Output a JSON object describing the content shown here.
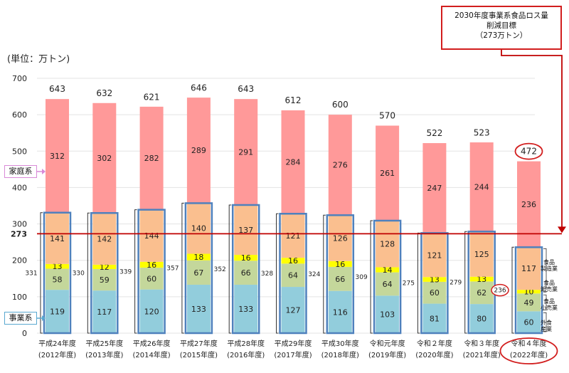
{
  "unit_label": "(単位：万トン)",
  "target_box": {
    "line1": "2030年度事業系食品ロス量",
    "line2": "削減目標",
    "line3": "（273万トン）"
  },
  "legend": {
    "household": "家庭系",
    "business": "事業系"
  },
  "segment_labels": {
    "manufacturing": [
      "食品",
      "製造業"
    ],
    "wholesale": [
      "食品",
      "卸売業"
    ],
    "retail": [
      "食品",
      "小売業"
    ],
    "restaurant": [
      "外食",
      "産業"
    ]
  },
  "chart_data": {
    "type": "bar",
    "stacked": true,
    "ylim": [
      0,
      700
    ],
    "yticks": [
      0,
      100,
      200,
      300,
      400,
      500,
      600,
      700
    ],
    "target_value": 273,
    "target_label": "273",
    "categories": [
      {
        "name": "平成24年度",
        "year": "(2012年度)"
      },
      {
        "name": "平成25年度",
        "year": "(2013年度)"
      },
      {
        "name": "平成26年度",
        "year": "(2014年度)"
      },
      {
        "name": "平成27年度",
        "year": "(2015年度)"
      },
      {
        "name": "平成28年度",
        "year": "(2016年度)"
      },
      {
        "name": "平成29年度",
        "year": "(2017年度)"
      },
      {
        "name": "平成30年度",
        "year": "(2018年度)"
      },
      {
        "name": "令和元年度",
        "year": "(2019年度)"
      },
      {
        "name": "令和２年度",
        "year": "(2020年度)"
      },
      {
        "name": "令和３年度",
        "year": "(2021年度)"
      },
      {
        "name": "令和４年度",
        "year": "(2022年度)"
      }
    ],
    "series": [
      {
        "name": "外食産業",
        "color": "#92cddc",
        "values": [
          119,
          117,
          120,
          133,
          133,
          127,
          116,
          103,
          81,
          80,
          60
        ]
      },
      {
        "name": "食品小売業",
        "color": "#c4d79b",
        "values": [
          58,
          59,
          60,
          67,
          66,
          64,
          66,
          64,
          60,
          62,
          49
        ]
      },
      {
        "name": "食品卸売業",
        "color": "#ffff00",
        "values": [
          13,
          12,
          16,
          18,
          16,
          16,
          16,
          14,
          13,
          13,
          10
        ]
      },
      {
        "name": "食品製造業",
        "color": "#fabf8f",
        "values": [
          141,
          142,
          144,
          140,
          137,
          121,
          126,
          128,
          121,
          125,
          117
        ]
      },
      {
        "name": "家庭系",
        "color": "#ff9999",
        "values": [
          312,
          302,
          282,
          289,
          291,
          284,
          276,
          261,
          247,
          244,
          236
        ]
      }
    ],
    "totals": [
      643,
      632,
      621,
      646,
      643,
      612,
      600,
      570,
      522,
      523,
      472
    ],
    "business_totals": [
      331,
      330,
      339,
      357,
      352,
      328,
      324,
      309,
      275,
      279,
      236
    ],
    "business_color": "#4f81bd",
    "target_color": "#c00000"
  }
}
